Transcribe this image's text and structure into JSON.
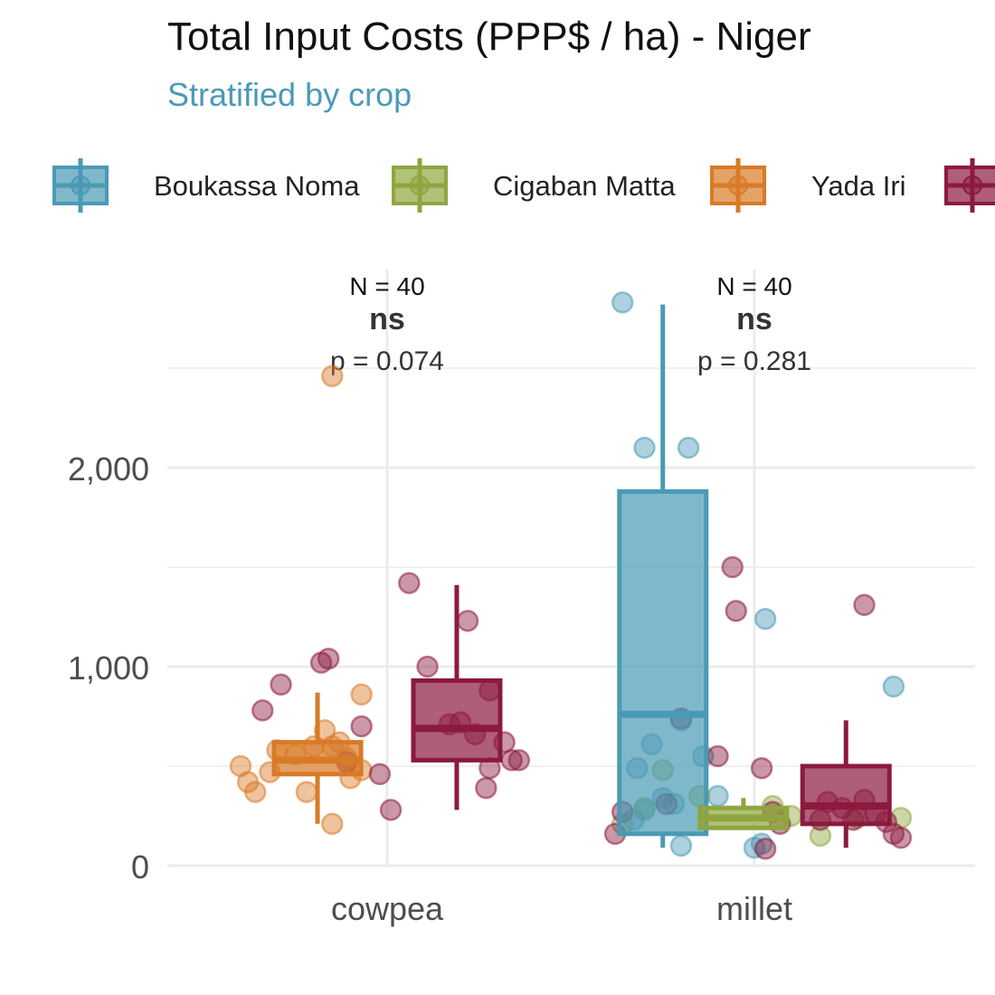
{
  "title": "Total Input Costs (PPP$ / ha) - Niger",
  "subtitle": "Stratified by crop",
  "colors": {
    "subtitle": "#4A9AB5",
    "grid": "#EBEBEB",
    "Boukassa Noma": "#4A9AB5",
    "Cigaban Matta": "#8FA63F",
    "Yada Iri": "#D97A27",
    "Fourth village": "#8C1A3E"
  },
  "legend": [
    {
      "label": "Boukassa Noma",
      "color": "#4A9AB5"
    },
    {
      "label": "Cigaban Matta",
      "color": "#8FA63F"
    },
    {
      "label": "Yada Iri",
      "color": "#D97A27"
    },
    {
      "label": "",
      "color": "#8C1A3E"
    }
  ],
  "chart_data": {
    "type": "box",
    "title": "Total Input Costs (PPP$ / ha) - Niger",
    "subtitle": "Stratified by crop",
    "xlabel": "",
    "ylabel": "",
    "categories": [
      "cowpea",
      "millet"
    ],
    "ylim": [
      0,
      2800
    ],
    "yticks": [
      0,
      1000,
      2000
    ],
    "ytick_labels": [
      "0",
      "1,000",
      "2,000"
    ],
    "grid": true,
    "legend_position": "top",
    "annotations": [
      {
        "category": "cowpea",
        "n": "N = 40",
        "sig": "ns",
        "p": "p = 0.074"
      },
      {
        "category": "millet",
        "n": "N = 40",
        "sig": "ns",
        "p": "p = 0.281"
      }
    ],
    "boxes": [
      {
        "category": "cowpea",
        "group": "Yada Iri",
        "color": "#D97A27",
        "offset": -0.19,
        "whisker_low": 210,
        "q1": 460,
        "median": 530,
        "q3": 620,
        "whisker_high": 870,
        "points": [
          [
            -0.4,
            500
          ],
          [
            -0.38,
            420
          ],
          [
            -0.36,
            370
          ],
          [
            -0.32,
            470
          ],
          [
            -0.3,
            580
          ],
          [
            -0.25,
            560
          ],
          [
            -0.22,
            370
          ],
          [
            -0.2,
            600
          ],
          [
            -0.17,
            680
          ],
          [
            -0.15,
            600
          ],
          [
            -0.13,
            620
          ],
          [
            -0.11,
            540
          ],
          [
            -0.1,
            440
          ],
          [
            -0.15,
            210
          ],
          [
            -0.07,
            480
          ],
          [
            -0.15,
            2460
          ],
          [
            -0.07,
            860
          ]
        ]
      },
      {
        "category": "cowpea",
        "group": "Fourth village",
        "color": "#8C1A3E",
        "offset": 0.19,
        "whisker_low": 280,
        "q1": 530,
        "median": 690,
        "q3": 930,
        "whisker_high": 1410,
        "points": [
          [
            -0.34,
            780
          ],
          [
            -0.29,
            910
          ],
          [
            -0.18,
            1020
          ],
          [
            -0.16,
            1040
          ],
          [
            -0.11,
            520
          ],
          [
            -0.07,
            700
          ],
          [
            -0.02,
            460
          ],
          [
            0.01,
            280
          ],
          [
            0.06,
            1420
          ],
          [
            0.11,
            1000
          ],
          [
            0.17,
            710
          ],
          [
            0.2,
            720
          ],
          [
            0.22,
            1230
          ],
          [
            0.24,
            660
          ],
          [
            0.28,
            880
          ],
          [
            0.28,
            490
          ],
          [
            0.32,
            620
          ],
          [
            0.34,
            530
          ],
          [
            0.36,
            530
          ],
          [
            0.27,
            390
          ]
        ]
      },
      {
        "category": "millet",
        "group": "Boukassa Noma",
        "color": "#4A9AB5",
        "offset": -0.25,
        "whisker_low": 90,
        "q1": 160,
        "median": 760,
        "q3": 1880,
        "whisker_high": 2820,
        "points": [
          [
            -0.36,
            2830
          ],
          [
            -0.3,
            2100
          ],
          [
            -0.18,
            2100
          ],
          [
            0.03,
            1240
          ],
          [
            0.38,
            900
          ],
          [
            -0.2,
            730
          ],
          [
            -0.14,
            550
          ],
          [
            -0.28,
            610
          ],
          [
            -0.32,
            490
          ],
          [
            -0.25,
            340
          ],
          [
            -0.22,
            310
          ],
          [
            -0.3,
            280
          ],
          [
            -0.33,
            230
          ],
          [
            -0.2,
            100
          ],
          [
            -0.1,
            350
          ],
          [
            0.0,
            90
          ],
          [
            0.02,
            110
          ]
        ]
      },
      {
        "category": "millet",
        "group": "Cigaban Matta",
        "color": "#8FA63F",
        "offset": -0.03,
        "whisker_low": 190,
        "q1": 190,
        "median": 240,
        "q3": 290,
        "whisker_high": 340,
        "points": [
          [
            -0.25,
            480
          ],
          [
            -0.15,
            350
          ],
          [
            -0.3,
            290
          ],
          [
            -0.36,
            210
          ],
          [
            0.18,
            150
          ],
          [
            0.28,
            240
          ],
          [
            0.4,
            240
          ],
          [
            0.05,
            300
          ],
          [
            0.1,
            250
          ]
        ]
      },
      {
        "category": "millet",
        "group": "Fourth village",
        "color": "#8C1A3E",
        "offset": 0.25,
        "whisker_low": 90,
        "q1": 210,
        "median": 300,
        "q3": 500,
        "whisker_high": 730,
        "points": [
          [
            -0.06,
            1500
          ],
          [
            -0.05,
            1280
          ],
          [
            0.3,
            1310
          ],
          [
            0.2,
            320
          ],
          [
            0.24,
            290
          ],
          [
            0.27,
            230
          ],
          [
            0.33,
            260
          ],
          [
            0.36,
            220
          ],
          [
            0.38,
            160
          ],
          [
            0.4,
            140
          ],
          [
            0.02,
            490
          ],
          [
            -0.38,
            160
          ],
          [
            -0.36,
            270
          ],
          [
            -0.2,
            740
          ],
          [
            -0.1,
            550
          ],
          [
            -0.24,
            310
          ],
          [
            0.03,
            85
          ],
          [
            0.05,
            270
          ],
          [
            0.07,
            210
          ],
          [
            0.18,
            230
          ],
          [
            0.3,
            330
          ]
        ]
      }
    ]
  }
}
